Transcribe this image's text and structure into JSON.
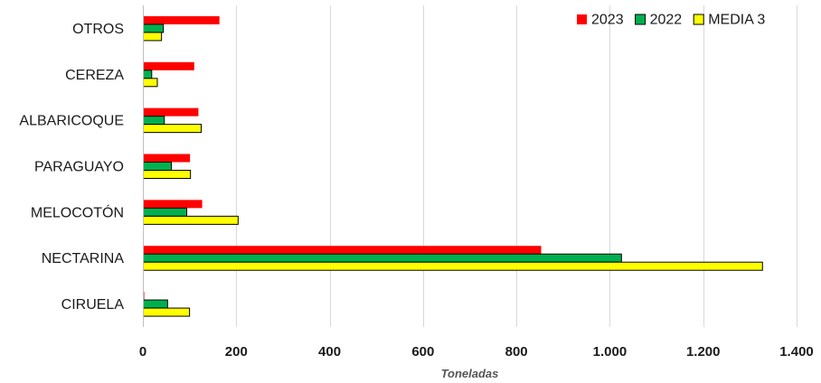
{
  "chart_data": {
    "type": "bar",
    "orientation": "horizontal",
    "categories": [
      "OTROS",
      "CEREZA",
      "ALBARICOQUE",
      "PARAGUAYO",
      "MELOCOTÓN",
      "NECTARINA",
      "CIRUELA"
    ],
    "series": [
      {
        "name": "2023",
        "color": "#ff0000",
        "values": [
          163,
          109,
          118,
          100,
          126,
          852,
          2
        ]
      },
      {
        "name": "2022",
        "color": "#00b050",
        "values": [
          43,
          18,
          45,
          60,
          93,
          1024,
          52
        ]
      },
      {
        "name": "MEDIA 3",
        "color": "#ffff00",
        "values": [
          39,
          30,
          124,
          101,
          203,
          1326,
          99
        ]
      }
    ],
    "xlabel": "Toneladas",
    "ylabel": "",
    "xlim": [
      0,
      1400
    ],
    "x_ticks": [
      0,
      200,
      400,
      600,
      800,
      1000,
      1200,
      1400
    ],
    "x_tick_labels": [
      "0",
      "200",
      "400",
      "600",
      "800",
      "1.000",
      "1.200",
      "1.400"
    ],
    "grid": true,
    "legend_position": "top-right"
  }
}
